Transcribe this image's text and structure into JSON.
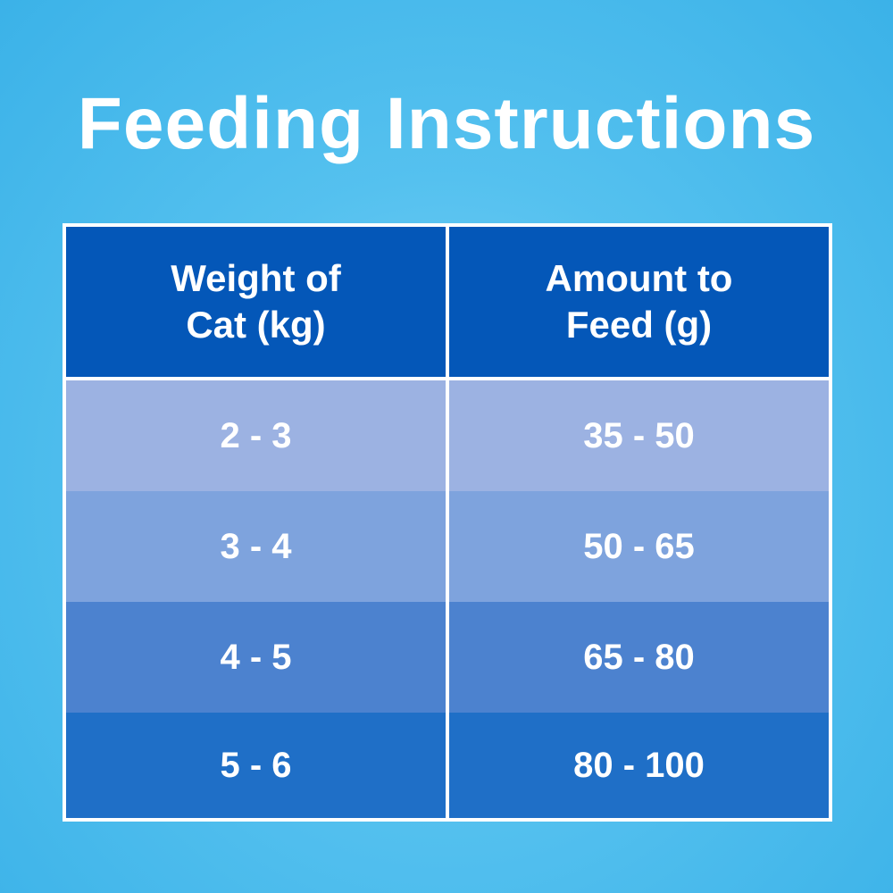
{
  "header": {
    "title": "Feeding Instructions"
  },
  "table": {
    "columns": [
      "Weight of Cat (kg)",
      "Amount to Feed (g)"
    ],
    "rows": [
      [
        "2 - 3",
        "35 - 50"
      ],
      [
        "3 - 4",
        "50 - 65"
      ],
      [
        "4 - 5",
        "65 - 80"
      ],
      [
        "5 - 6",
        "80 - 100"
      ]
    ]
  }
}
